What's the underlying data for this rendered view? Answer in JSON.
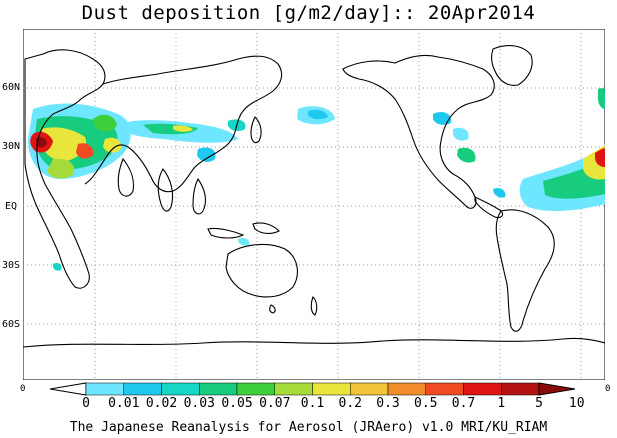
{
  "title": "Dust deposition [g/m2/day]:: 20Apr2014",
  "lat_labels": [
    "60N",
    "30N",
    "EQ",
    "30S",
    "60S"
  ],
  "colorbar": {
    "end_left": "0",
    "end_right": "0",
    "ticks": [
      "0",
      "0.01",
      "0.02",
      "0.03",
      "0.05",
      "0.07",
      "0.1",
      "0.2",
      "0.3",
      "0.5",
      "0.7",
      "1",
      "5",
      "10"
    ],
    "colors": [
      "#ffffff",
      "#6ee6ff",
      "#1ec8ee",
      "#17d6c6",
      "#17cc7e",
      "#3ecf3a",
      "#a6dc3a",
      "#e8e63a",
      "#f0c338",
      "#f08c2c",
      "#f04a22",
      "#e01414",
      "#b41212",
      "#8c0a0a"
    ]
  },
  "footer": "The Japanese Reanalysis for Aerosol (JRAero) v1.0 MRI/KU_RIAM"
}
